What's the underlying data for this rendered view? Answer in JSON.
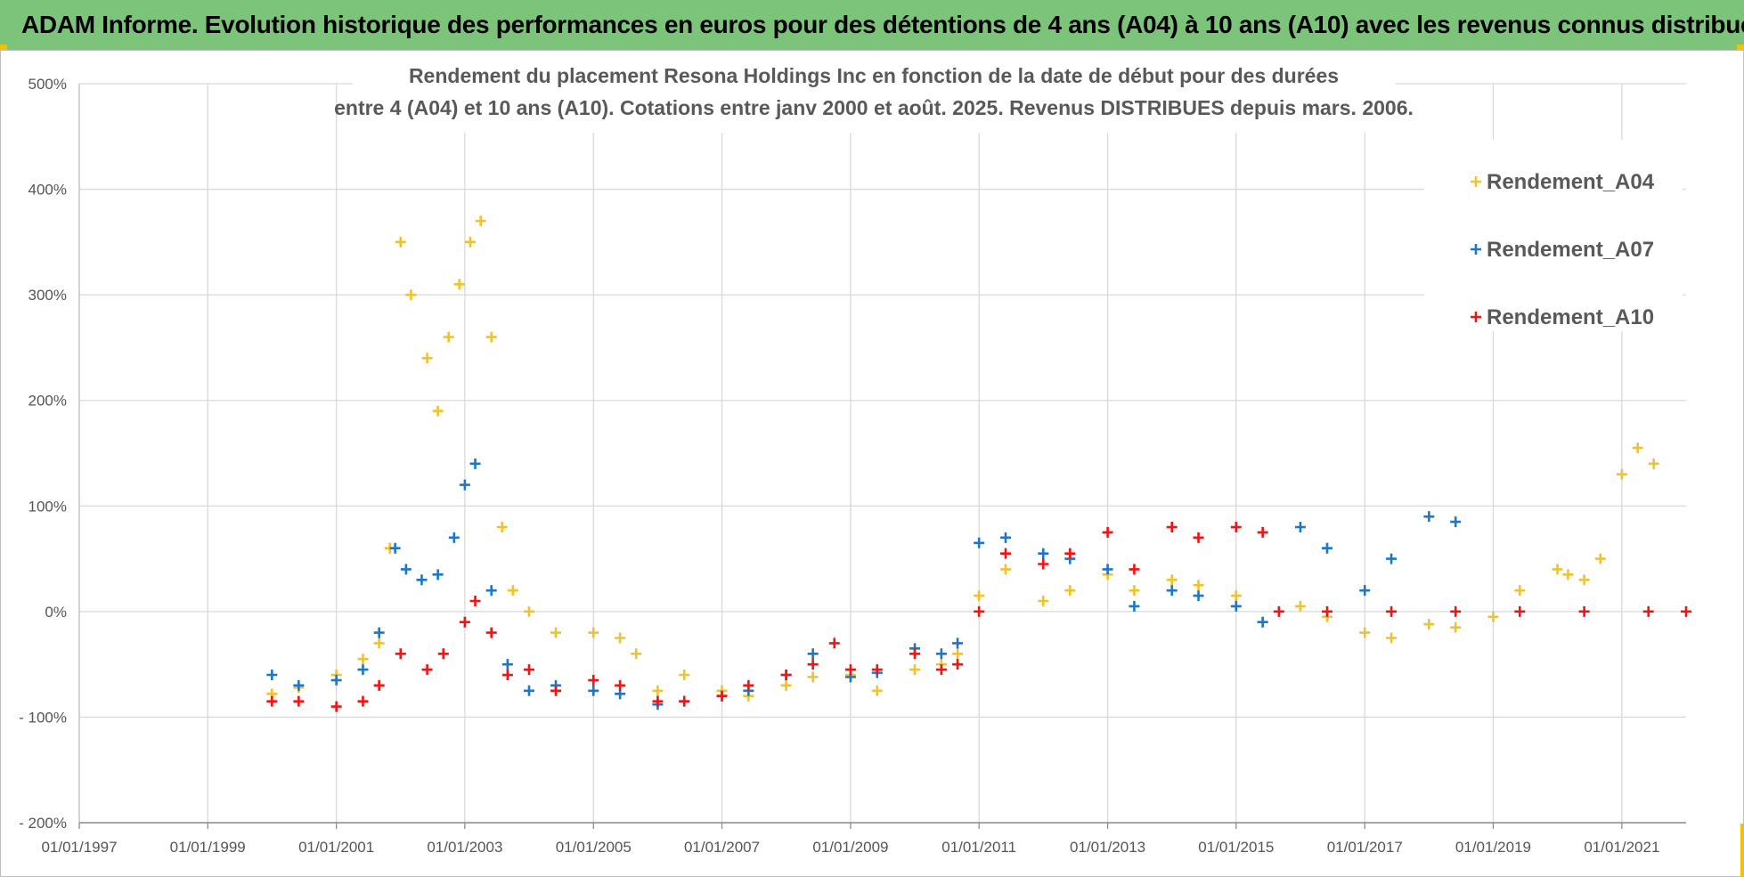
{
  "banner": {
    "title": "ADAM Informe. Evolution historique des performances en euros pour des détentions de 4 ans (A04) à 10 ans (A10) avec les revenus connus distribués"
  },
  "colors": {
    "banner_bg": "#7cc47a",
    "a04": "#f2c12e",
    "a07": "#1f77c4",
    "a10": "#f01414",
    "grid": "#d9d9d9",
    "corner_accent": "#f2c200"
  },
  "chart_data": {
    "type": "scatter",
    "title_line1": "Rendement du placement Resona Holdings Inc en fonction de la date de début pour des durées",
    "title_line2": "entre 4 (A04) et 10 ans (A10). Cotations entre janv 2000 et août. 2025. Revenus DISTRIBUES depuis mars. 2006.",
    "xlabel": "",
    "ylabel": "",
    "x_range": [
      "1997-01-01",
      "2022-01-01"
    ],
    "x_ticks": [
      "01/01/1997",
      "01/01/1999",
      "01/01/2001",
      "01/01/2003",
      "01/01/2005",
      "01/01/2007",
      "01/01/2009",
      "01/01/2011",
      "01/01/2013",
      "01/01/2015",
      "01/01/2017",
      "01/01/2019",
      "01/01/2021"
    ],
    "y_range": [
      -200,
      500
    ],
    "y_ticks": [
      500,
      400,
      300,
      200,
      100,
      0,
      -100,
      -200
    ],
    "y_tick_labels": [
      "500%",
      "400%",
      "300%",
      "200%",
      "100%",
      "0%",
      "- 100%",
      "- 200%"
    ],
    "grid": true,
    "legend_position": "top-right",
    "marker": "+",
    "series": [
      {
        "name": "Rendement_A04",
        "color": "#f2c12e",
        "x": [
          "2000-01-01",
          "2000-06-01",
          "2001-01-01",
          "2001-06-01",
          "2001-09-01",
          "2001-11-01",
          "2002-01-01",
          "2002-03-01",
          "2002-06-01",
          "2002-08-01",
          "2002-10-01",
          "2002-12-01",
          "2003-02-01",
          "2003-04-01",
          "2003-06-01",
          "2003-08-01",
          "2003-10-01",
          "2004-01-01",
          "2004-06-01",
          "2005-01-01",
          "2005-06-01",
          "2005-09-01",
          "2006-01-01",
          "2006-06-01",
          "2007-01-01",
          "2007-06-01",
          "2008-01-01",
          "2008-06-01",
          "2009-01-01",
          "2009-06-01",
          "2010-01-01",
          "2010-06-01",
          "2010-09-01",
          "2011-01-01",
          "2011-06-01",
          "2012-01-01",
          "2012-06-01",
          "2013-01-01",
          "2013-06-01",
          "2014-01-01",
          "2014-06-01",
          "2015-01-01",
          "2015-06-01",
          "2016-01-01",
          "2016-06-01",
          "2017-01-01",
          "2017-06-01",
          "2018-01-01",
          "2018-06-01",
          "2019-01-01",
          "2019-06-01",
          "2020-01-01",
          "2020-03-01",
          "2020-06-01",
          "2020-09-01",
          "2021-01-01",
          "2021-04-01",
          "2021-07-01"
        ],
        "y": [
          -78,
          -72,
          -60,
          -45,
          -30,
          60,
          350,
          300,
          240,
          190,
          260,
          310,
          350,
          370,
          260,
          80,
          20,
          0,
          -20,
          -20,
          -25,
          -40,
          -75,
          -60,
          -75,
          -80,
          -70,
          -62,
          -60,
          -75,
          -55,
          -50,
          -40,
          15,
          40,
          10,
          20,
          35,
          20,
          30,
          25,
          15,
          -10,
          5,
          -5,
          -20,
          -25,
          -12,
          -15,
          -5,
          20,
          40,
          35,
          30,
          50,
          130,
          155,
          140
        ]
      },
      {
        "name": "Rendement_A07",
        "color": "#1f77c4",
        "x": [
          "2000-01-01",
          "2000-06-01",
          "2001-01-01",
          "2001-06-01",
          "2001-09-01",
          "2001-12-01",
          "2002-02-01",
          "2002-05-01",
          "2002-08-01",
          "2002-11-01",
          "2003-01-01",
          "2003-03-01",
          "2003-06-01",
          "2003-09-01",
          "2004-01-01",
          "2004-06-01",
          "2005-01-01",
          "2005-06-01",
          "2006-01-01",
          "2006-06-01",
          "2007-01-01",
          "2007-06-01",
          "2008-01-01",
          "2008-06-01",
          "2009-01-01",
          "2009-06-01",
          "2010-01-01",
          "2010-06-01",
          "2010-09-01",
          "2011-01-01",
          "2011-06-01",
          "2012-01-01",
          "2012-06-01",
          "2013-01-01",
          "2013-06-01",
          "2014-01-01",
          "2014-06-01",
          "2015-01-01",
          "2015-06-01",
          "2016-01-01",
          "2016-06-01",
          "2017-01-01",
          "2017-06-01",
          "2018-01-01",
          "2018-06-01"
        ],
        "y": [
          -60,
          -70,
          -65,
          -55,
          -20,
          60,
          40,
          30,
          35,
          70,
          120,
          140,
          20,
          -50,
          -75,
          -70,
          -75,
          -78,
          -88,
          -85,
          -80,
          -75,
          -60,
          -40,
          -62,
          -58,
          -35,
          -40,
          -30,
          65,
          70,
          55,
          50,
          40,
          5,
          20,
          15,
          5,
          -10,
          80,
          60,
          20,
          50,
          90,
          85
        ]
      },
      {
        "name": "Rendement_A10",
        "color": "#f01414",
        "x": [
          "2000-01-01",
          "2000-06-01",
          "2001-01-01",
          "2001-06-01",
          "2001-09-01",
          "2002-01-01",
          "2002-06-01",
          "2002-09-01",
          "2003-01-01",
          "2003-03-01",
          "2003-06-01",
          "2003-09-01",
          "2004-01-01",
          "2004-06-01",
          "2005-01-01",
          "2005-06-01",
          "2006-01-01",
          "2006-06-01",
          "2007-01-01",
          "2007-06-01",
          "2008-01-01",
          "2008-06-01",
          "2008-10-01",
          "2009-01-01",
          "2009-06-01",
          "2010-01-01",
          "2010-06-01",
          "2010-09-01",
          "2011-01-01",
          "2011-06-01",
          "2012-01-01",
          "2012-06-01",
          "2013-01-01",
          "2013-06-01",
          "2014-01-01",
          "2014-06-01",
          "2015-01-01",
          "2015-06-01",
          "2015-09-01",
          "2016-06-01",
          "2017-06-01",
          "2018-06-01",
          "2019-06-01",
          "2020-06-01",
          "2021-06-01",
          "2022-01-01"
        ],
        "y": [
          -85,
          -85,
          -90,
          -85,
          -70,
          -40,
          -55,
          -40,
          -10,
          10,
          -20,
          -60,
          -55,
          -75,
          -65,
          -70,
          -85,
          -85,
          -80,
          -70,
          -60,
          -50,
          -30,
          -55,
          -55,
          -40,
          -55,
          -50,
          0,
          55,
          45,
          55,
          75,
          40,
          80,
          70,
          80,
          75,
          0,
          0,
          0,
          0,
          0,
          0,
          0,
          0
        ]
      }
    ]
  }
}
